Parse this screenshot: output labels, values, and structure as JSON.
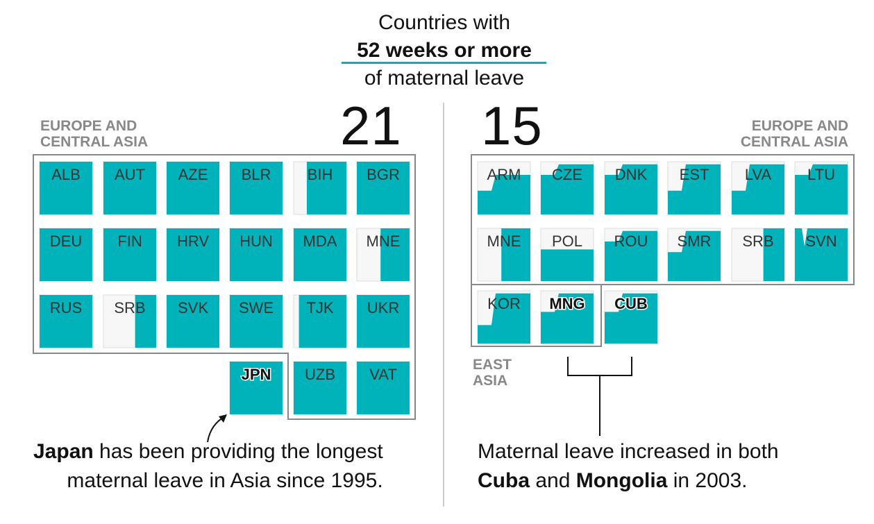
{
  "header": {
    "line1": "Countries with",
    "line2": "52 weeks or more",
    "line3": "of maternal leave"
  },
  "colors": {
    "fill": "#00b3ba",
    "empty": "#f7f7f7",
    "outline": "#888888",
    "underline": "#00b3ba",
    "label_dark": "#333333"
  },
  "left_panel": {
    "count": "21",
    "region_label_line1": "EUROPE AND",
    "region_label_line2": "CENTRAL ASIA",
    "countries": [
      {
        "code": "ALB",
        "fill_fraction": 1.0,
        "highlight": false
      },
      {
        "code": "AUT",
        "fill_fraction": 1.0,
        "highlight": false
      },
      {
        "code": "AZE",
        "fill_fraction": 1.0,
        "highlight": false
      },
      {
        "code": "BLR",
        "fill_fraction": 1.0,
        "highlight": false
      },
      {
        "code": "BIH",
        "fill_fraction": 0.75,
        "highlight": false
      },
      {
        "code": "BGR",
        "fill_fraction": 1.0,
        "highlight": false
      },
      {
        "code": "DEU",
        "fill_fraction": 1.0,
        "highlight": false
      },
      {
        "code": "FIN",
        "fill_fraction": 1.0,
        "highlight": false
      },
      {
        "code": "HRV",
        "fill_fraction": 1.0,
        "highlight": false
      },
      {
        "code": "HUN",
        "fill_fraction": 1.0,
        "highlight": false
      },
      {
        "code": "MDA",
        "fill_fraction": 1.0,
        "highlight": false
      },
      {
        "code": "MNE",
        "fill_fraction": 0.55,
        "highlight": false
      },
      {
        "code": "RUS",
        "fill_fraction": 1.0,
        "highlight": false
      },
      {
        "code": "SRB",
        "fill_fraction": 0.4,
        "highlight": false
      },
      {
        "code": "SVK",
        "fill_fraction": 1.0,
        "highlight": false
      },
      {
        "code": "SWE",
        "fill_fraction": 1.0,
        "highlight": false
      },
      {
        "code": "TJK",
        "fill_fraction": 0.9,
        "highlight": false
      },
      {
        "code": "UKR",
        "fill_fraction": 1.0,
        "highlight": false
      },
      {
        "code": "JPN",
        "fill_fraction": 1.0,
        "highlight": true
      },
      {
        "code": "UZB",
        "fill_fraction": 1.0,
        "highlight": false
      },
      {
        "code": "VAT",
        "fill_fraction": 1.0,
        "highlight": false
      }
    ],
    "annotation_bold": "Japan",
    "annotation_line1_rest": " has been providing the longest",
    "annotation_line2": "maternal leave in Asia since 1995."
  },
  "right_panel": {
    "count": "15",
    "region_label_line1": "EUROPE AND",
    "region_label_line2": "CENTRAL ASIA",
    "region2_label_line1": "EAST",
    "region2_label_line2": "ASIA",
    "countries": [
      {
        "code": "ARM",
        "fill_from": 0.45,
        "fill_to": 0.75,
        "highlight": false
      },
      {
        "code": "CZE",
        "fill_from": 0.75,
        "fill_to": 0.95,
        "highlight": false
      },
      {
        "code": "DNK",
        "fill_from": 0.75,
        "fill_to": 0.95,
        "highlight": false
      },
      {
        "code": "EST",
        "fill_from": 0.45,
        "fill_to": 0.95,
        "highlight": false
      },
      {
        "code": "LVA",
        "fill_from": 0.45,
        "fill_to": 0.95,
        "highlight": false
      },
      {
        "code": "LTU",
        "fill_from": 0.75,
        "fill_to": 0.95,
        "highlight": false
      },
      {
        "code": "MNE",
        "fill_from": 0.55,
        "fill_to": 0.55,
        "highlight": false
      },
      {
        "code": "POL",
        "fill_from": 0.6,
        "fill_to": 0.6,
        "highlight": false
      },
      {
        "code": "ROU",
        "fill_from": 0.75,
        "fill_to": 0.95,
        "highlight": false
      },
      {
        "code": "SMR",
        "fill_from": 0.55,
        "fill_to": 0.95,
        "highlight": false
      },
      {
        "code": "SRB",
        "fill_from": 0.4,
        "fill_to": 0.4,
        "highlight": false
      },
      {
        "code": "SVN",
        "fill_from": 1.0,
        "fill_to": 0.95,
        "highlight": false
      },
      {
        "code": "KOR",
        "fill_from": 0.35,
        "fill_to": 0.95,
        "highlight": false
      },
      {
        "code": "MNG",
        "fill_from": 0.6,
        "fill_to": 0.95,
        "highlight": true
      },
      {
        "code": "CUB",
        "fill_from": 0.6,
        "fill_to": 0.95,
        "highlight": true
      }
    ],
    "annotation_line1": "Maternal leave increased in both",
    "annotation_bold1": "Cuba",
    "annotation_and": " and ",
    "annotation_bold2": "Mongolia",
    "annotation_rest": " in 2003."
  }
}
